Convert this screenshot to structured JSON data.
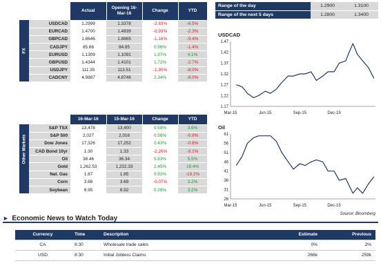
{
  "fx": {
    "section_label": "FX",
    "headers": [
      "Actual",
      "Opening 16-Mar-16",
      "Change",
      "YTD"
    ],
    "rows": [
      {
        "name": "USDCAD",
        "actual": "1.2999",
        "open": "1.3378",
        "change": "-2.83%",
        "ytd": "-6.5%",
        "cs": "neg",
        "ys": "neg"
      },
      {
        "name": "EURCAD",
        "actual": "1.4700",
        "open": "1.4839",
        "change": "-0.93%",
        "ytd": "-2.3%",
        "cs": "neg",
        "ys": "neg"
      },
      {
        "name": "GBPCAD",
        "actual": "1.8646",
        "open": "1.8865",
        "change": "-1.16%",
        "ytd": "-9.4%",
        "cs": "neg",
        "ys": "neg"
      },
      {
        "name": "CADJPY",
        "actual": "85.66",
        "open": "84.85",
        "change": "0.96%",
        "ytd": "-1.4%",
        "cs": "pos",
        "ys": "neg"
      },
      {
        "name": "EURUSD",
        "actual": "1.1309",
        "open": "1.1091",
        "change": "1.97%",
        "ytd": "4.1%",
        "cs": "pos",
        "ys": "pos"
      },
      {
        "name": "GBPUSD",
        "actual": "1.4344",
        "open": "1.4101",
        "change": "1.72%",
        "ytd": "-2.7%",
        "cs": "pos",
        "ys": "neg"
      },
      {
        "name": "USDJPY",
        "actual": "111.35",
        "open": "113.51",
        "change": "-1.90%",
        "ytd": "-8.0%",
        "cs": "neg",
        "ys": "neg"
      },
      {
        "name": "CADCNY",
        "actual": "4.9887",
        "open": "4.8746",
        "change": "2.34%",
        "ytd": "-8.0%",
        "cs": "pos",
        "ys": "neg"
      }
    ]
  },
  "other": {
    "section_label": "Other Markets",
    "headers": [
      "16-Mar-16",
      "15-Mar-16",
      "Change",
      "YTD"
    ],
    "rows": [
      {
        "name": "S&P TSX",
        "a": "13,478",
        "b": "13,400",
        "change": "0.58%",
        "ytd": "3.6%",
        "cs": "pos",
        "ys": "pos"
      },
      {
        "name": "S&P 500",
        "a": "2,027",
        "b": "2,016",
        "change": "0.56%",
        "ytd": "-0.8%",
        "cs": "pos",
        "ys": "neg"
      },
      {
        "name": "Dow Jones",
        "a": "17,326",
        "b": "17,252",
        "change": "0.43%",
        "ytd": "-0.6%",
        "cs": "pos",
        "ys": "neg"
      },
      {
        "name": "CAD Bond 10yr",
        "a": "1.30",
        "b": "1.33",
        "change": "-2.26%",
        "ytd": "-9.1%",
        "cs": "neg",
        "ys": "neg"
      },
      {
        "name": "Oil",
        "a": "38.46",
        "b": "36.34",
        "change": "5.83%",
        "ytd": "5.5%",
        "cs": "pos",
        "ys": "pos"
      },
      {
        "name": "Gold",
        "a": "1,262.53",
        "b": "1,232.33",
        "change": "2.45%",
        "ytd": "19.4%",
        "cs": "pos",
        "ys": "pos"
      },
      {
        "name": "Nat. Gas",
        "a": "1.87",
        "b": "1.85",
        "change": "0.92%",
        "ytd": "-19.2%",
        "cs": "pos",
        "ys": "neg"
      },
      {
        "name": "Corn",
        "a": "3.68",
        "b": "3.69",
        "change": "-0.07%",
        "ytd": "3.2%",
        "cs": "neg",
        "ys": "pos"
      },
      {
        "name": "Soybean",
        "a": "8.95",
        "b": "8.92",
        "change": "0.28%",
        "ytd": "3.2%",
        "cs": "pos",
        "ys": "pos"
      }
    ]
  },
  "range": {
    "day_label": "Range of the day",
    "day_low": "1.2900",
    "day_high": "1.3100",
    "next_label": "Range of the next 5 days",
    "next_low": "1.2800",
    "next_high": "1.3400"
  },
  "colors": {
    "navy": "#1f3864",
    "grey": "#d9d9d9",
    "positive": "#1a9a2c",
    "negative": "#e0191f"
  },
  "chart_data": [
    {
      "type": "line",
      "title": "USDCAD",
      "x_ticks": [
        "Mar-15",
        "Jun-15",
        "Sep-15",
        "Dec-15"
      ],
      "y_ticks": [
        1.17,
        1.22,
        1.27,
        1.32,
        1.37,
        1.42,
        1.47
      ],
      "ylim": [
        1.17,
        1.47
      ],
      "x": [
        "2015-03-16",
        "2015-04-01",
        "2015-04-15",
        "2015-05-01",
        "2015-05-15",
        "2015-06-01",
        "2015-06-15",
        "2015-07-01",
        "2015-07-15",
        "2015-08-01",
        "2015-08-15",
        "2015-09-01",
        "2015-09-15",
        "2015-10-01",
        "2015-10-15",
        "2015-11-01",
        "2015-11-15",
        "2015-12-01",
        "2015-12-15",
        "2016-01-01",
        "2016-01-10",
        "2016-01-20",
        "2016-02-01",
        "2016-02-15",
        "2016-03-01",
        "2016-03-16"
      ],
      "values": [
        1.27,
        1.26,
        1.23,
        1.21,
        1.22,
        1.24,
        1.23,
        1.25,
        1.28,
        1.31,
        1.31,
        1.32,
        1.32,
        1.33,
        1.29,
        1.31,
        1.33,
        1.33,
        1.37,
        1.38,
        1.42,
        1.46,
        1.41,
        1.38,
        1.35,
        1.3
      ]
    },
    {
      "type": "line",
      "title": "Oil",
      "x_ticks": [
        "Mar-15",
        "Jun-15",
        "Sep-15",
        "Dec-15"
      ],
      "y_ticks": [
        26,
        31,
        36,
        41,
        46,
        51,
        56,
        61
      ],
      "ylim": [
        26,
        61
      ],
      "x": [
        "2015-03-16",
        "2015-04-01",
        "2015-04-15",
        "2015-05-01",
        "2015-05-15",
        "2015-06-01",
        "2015-06-15",
        "2015-07-01",
        "2015-07-15",
        "2015-08-01",
        "2015-08-15",
        "2015-09-01",
        "2015-09-15",
        "2015-10-01",
        "2015-10-15",
        "2015-11-01",
        "2015-11-15",
        "2015-12-01",
        "2015-12-15",
        "2016-01-01",
        "2016-01-20",
        "2016-02-01",
        "2016-02-15",
        "2016-03-01",
        "2016-03-16"
      ],
      "values": [
        44,
        49,
        56,
        59,
        60,
        60,
        60,
        57,
        51,
        46,
        42,
        45,
        44,
        46,
        47,
        46,
        41,
        41,
        36,
        37,
        29,
        32,
        29,
        34,
        38
      ]
    }
  ],
  "source": "Source: Bloomberg",
  "news": {
    "title": "Economic News to Watch Today",
    "headers": [
      "Currency",
      "Time",
      "Description",
      "Estimate",
      "Previous"
    ],
    "rows": [
      {
        "currency": "CA",
        "time": "8:30",
        "desc": "Wholesale trade sales",
        "estimate": "0%",
        "previous": "2%"
      },
      {
        "currency": "USD",
        "time": "8:30",
        "desc": "Initial Jobless Claims",
        "estimate": "266k",
        "previous": "259k"
      }
    ]
  }
}
